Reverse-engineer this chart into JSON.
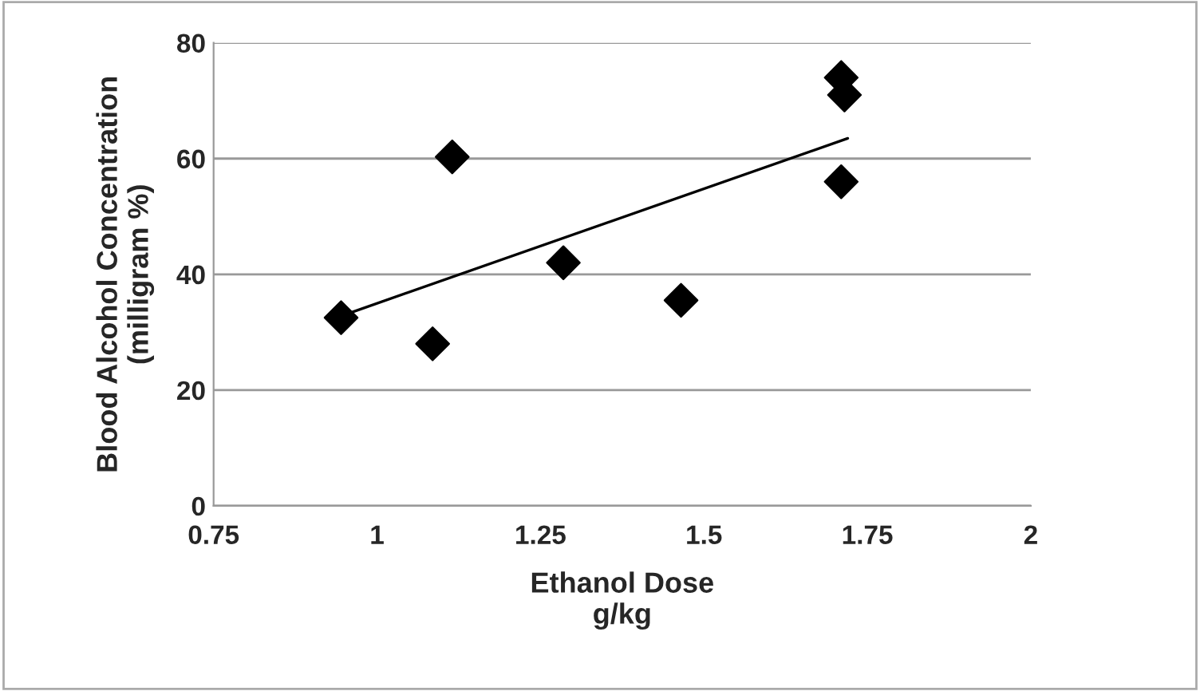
{
  "chart_data": {
    "type": "scatter",
    "xlabel": "Ethanol Dose\ng/kg",
    "ylabel": "Blood Alcohol Concentration\n(milligram %)",
    "xlim": [
      0.75,
      2
    ],
    "xticks": [
      0.75,
      1,
      1.25,
      1.5,
      1.75,
      2
    ],
    "ylim": [
      0,
      80
    ],
    "yticks": [
      0,
      20,
      40,
      60,
      80
    ],
    "grid": "y",
    "series": [
      {
        "color": "#000000",
        "marker": "diamond",
        "x": [
          0.945,
          1.085,
          1.115,
          1.285,
          1.465,
          1.71,
          1.715,
          1.71
        ],
        "values": [
          32.5,
          28,
          60.3,
          42,
          35.5,
          74,
          71,
          56
        ]
      },
      {
        "type": "line",
        "marker": "none",
        "color": "#000000",
        "x": [
          0.95,
          1.72
        ],
        "values": [
          33,
          63.5
        ]
      }
    ]
  }
}
